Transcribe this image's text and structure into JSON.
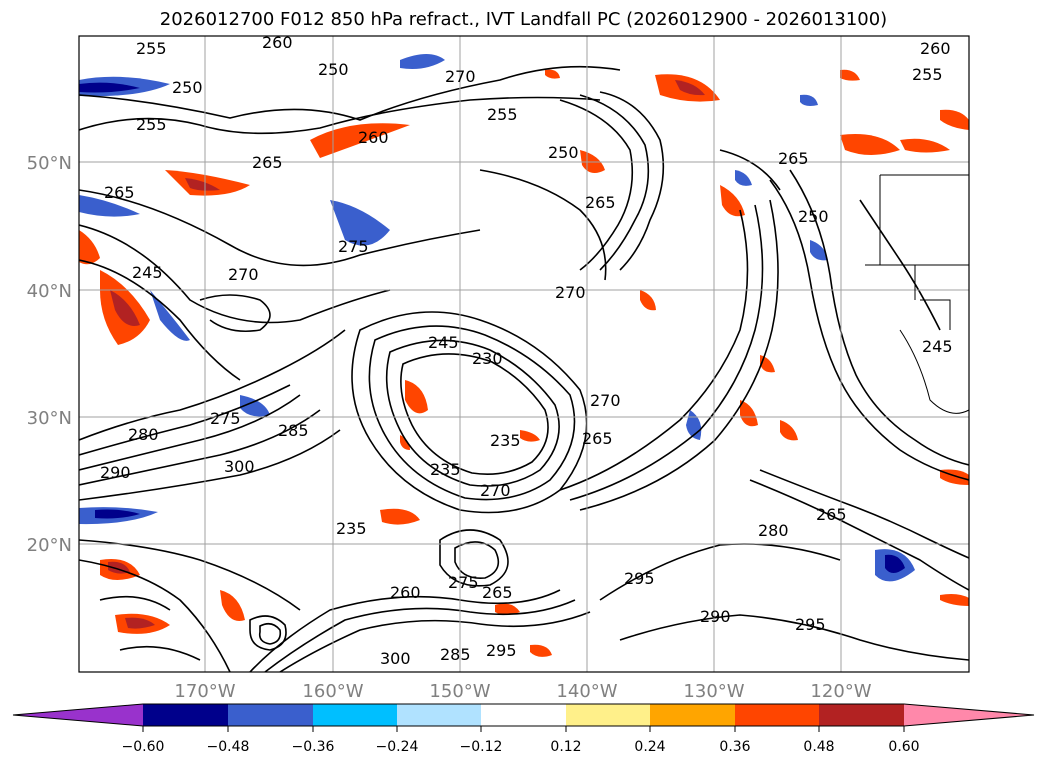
{
  "title": "2026012700 F012 850 hPa refract., IVT Landfall PC (2026012900 - 2026013100)",
  "axes": {
    "lat_labels": [
      "50°N",
      "40°N",
      "30°N",
      "20°N"
    ],
    "lon_labels": [
      "170°W",
      "160°W",
      "150°W",
      "140°W",
      "130°W",
      "120°W"
    ]
  },
  "contour_labels": [
    "255",
    "250",
    "255",
    "260",
    "265",
    "270",
    "250",
    "255",
    "260",
    "265",
    "275",
    "245",
    "270",
    "250",
    "265",
    "270",
    "245",
    "235",
    "270",
    "280",
    "275",
    "285",
    "300",
    "235",
    "230",
    "265",
    "270",
    "280",
    "290",
    "260",
    "275",
    "265",
    "295",
    "290",
    "295",
    "300",
    "285",
    "295",
    "250",
    "265",
    "255",
    "260",
    "245",
    "235",
    "265"
  ],
  "colorbar": {
    "ticks": [
      "−0.60",
      "−0.48",
      "−0.36",
      "−0.24",
      "−0.12",
      "0.12",
      "0.24",
      "0.36",
      "0.48",
      "0.60"
    ],
    "colors": [
      "#9932cc",
      "#00008b",
      "#3a5fcd",
      "#00bfff",
      "#b0e2ff",
      "#ffffff",
      "#fff08a",
      "#ffa500",
      "#ff4500",
      "#b22222",
      "#ff88aa"
    ]
  },
  "map_style": {
    "contour_color": "#000000",
    "grid_color": "#a0a0a0",
    "tick_color": "#808080"
  }
}
